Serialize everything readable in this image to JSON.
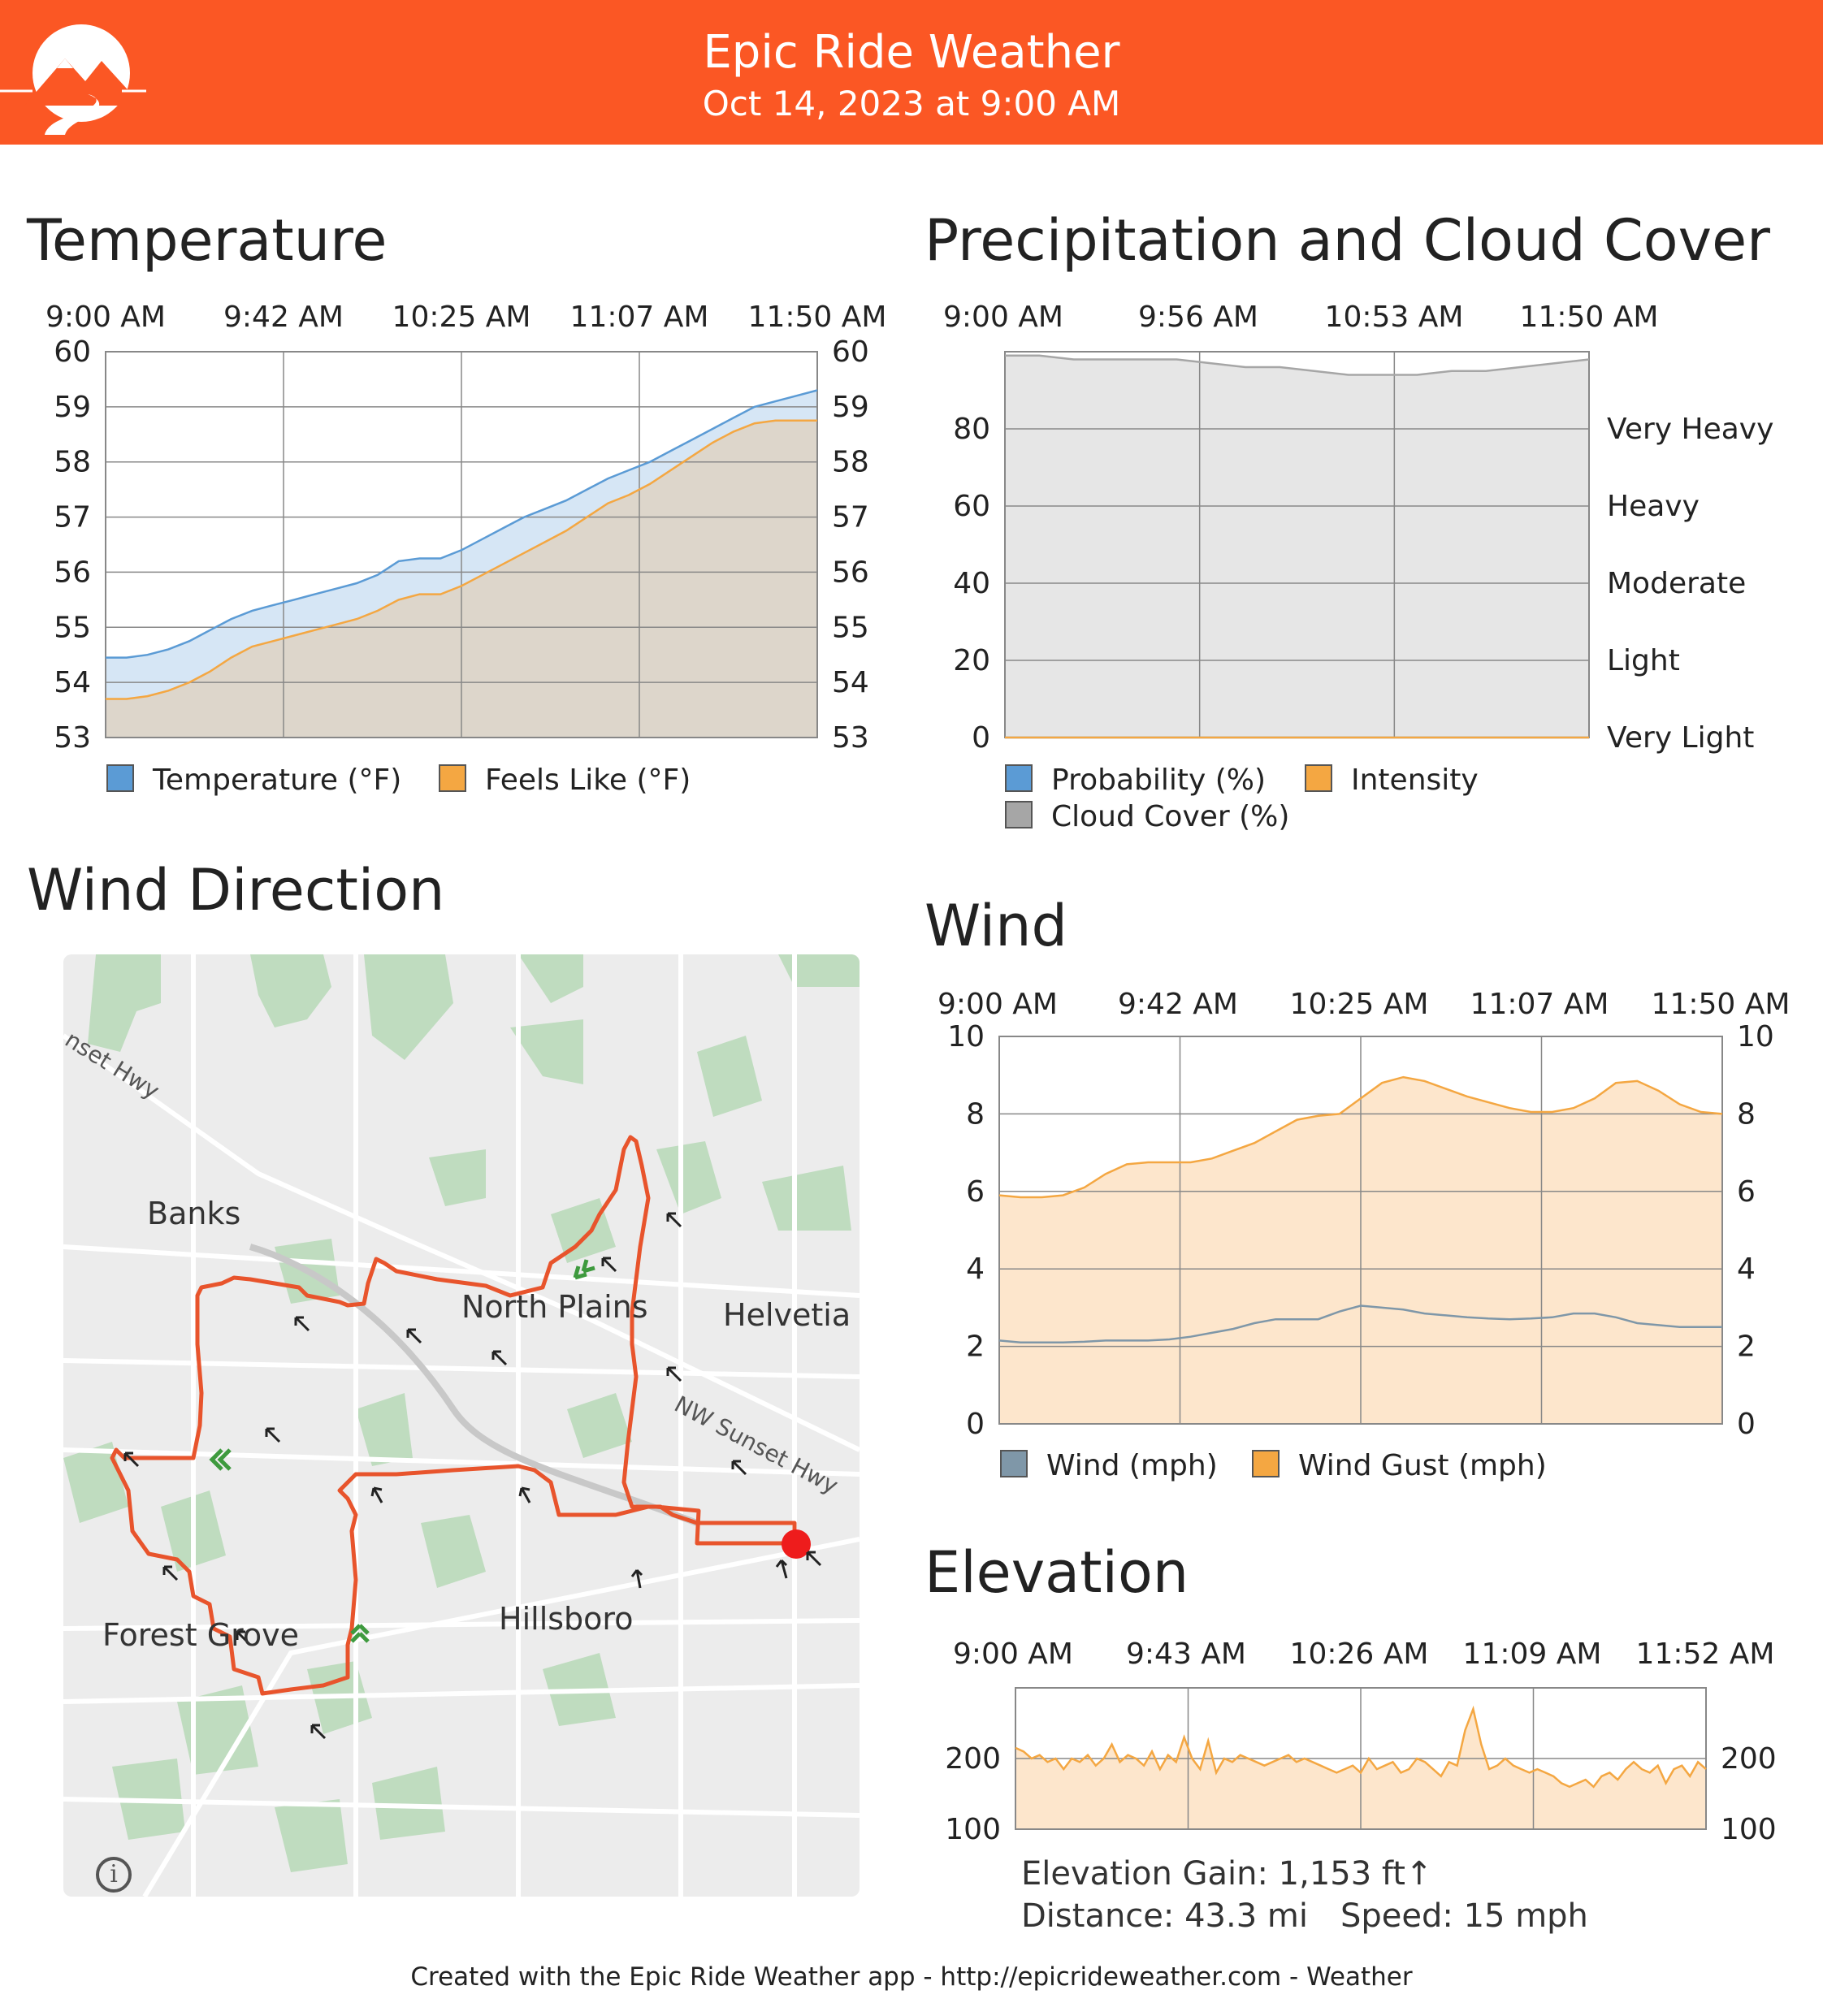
{
  "header": {
    "title": "Epic Ride Weather",
    "subtitle": "Oct 14, 2023 at 9:00 AM",
    "brand_color": "#fb5724"
  },
  "sections": {
    "temperature": "Temperature",
    "precipitation": "Precipitation and Cloud Cover",
    "wind_direction": "Wind Direction",
    "wind": "Wind",
    "elevation": "Elevation"
  },
  "chart_data": [
    {
      "id": "temperature",
      "type": "area",
      "title": "Temperature",
      "categories": [
        "9:00 AM",
        "9:42 AM",
        "10:25 AM",
        "11:07 AM",
        "11:50 AM"
      ],
      "x": [
        0,
        5,
        10,
        15,
        20,
        25,
        30,
        35,
        40,
        45,
        50,
        55,
        60,
        65,
        70,
        75,
        80,
        85,
        90,
        95,
        100,
        105,
        110,
        115,
        120,
        125,
        130,
        135,
        140,
        145,
        150,
        155,
        160,
        165,
        170
      ],
      "series": [
        {
          "name": "Temperature (°F)",
          "color": "#5b9bd5",
          "fill": "#d6e6f5",
          "values": [
            54.45,
            54.45,
            54.5,
            54.6,
            54.75,
            54.95,
            55.15,
            55.3,
            55.4,
            55.5,
            55.6,
            55.7,
            55.8,
            55.95,
            56.2,
            56.25,
            56.25,
            56.4,
            56.6,
            56.8,
            57.0,
            57.15,
            57.3,
            57.5,
            57.7,
            57.85,
            58.0,
            58.2,
            58.4,
            58.6,
            58.8,
            59.0,
            59.1,
            59.2,
            59.3
          ]
        },
        {
          "name": "Feels Like (°F)",
          "color": "#f4a742",
          "fill": "#ddd6cb",
          "values": [
            53.7,
            53.7,
            53.75,
            53.85,
            54.0,
            54.2,
            54.45,
            54.65,
            54.75,
            54.85,
            54.95,
            55.05,
            55.15,
            55.3,
            55.5,
            55.6,
            55.6,
            55.75,
            55.95,
            56.15,
            56.35,
            56.55,
            56.75,
            57.0,
            57.25,
            57.4,
            57.6,
            57.85,
            58.1,
            58.35,
            58.55,
            58.7,
            58.75,
            58.75,
            58.75
          ]
        }
      ],
      "ylim": [
        53,
        60
      ],
      "yticks": [
        53,
        54,
        55,
        56,
        57,
        58,
        59,
        60
      ],
      "grid": true,
      "legend": "bottom"
    },
    {
      "id": "precipitation",
      "type": "area",
      "title": "Precipitation and Cloud Cover",
      "categories": [
        "9:00 AM",
        "9:56 AM",
        "10:53 AM",
        "11:50 AM"
      ],
      "x": [
        0,
        10,
        20,
        30,
        40,
        50,
        60,
        70,
        80,
        90,
        100,
        110,
        120,
        130,
        140,
        150,
        160,
        170
      ],
      "series": [
        {
          "name": "Probability (%)",
          "color": "#5b9bd5",
          "values": [
            0,
            0,
            0,
            0,
            0,
            0,
            0,
            0,
            0,
            0,
            0,
            0,
            0,
            0,
            0,
            0,
            0,
            0
          ]
        },
        {
          "name": "Intensity",
          "color": "#f4a742",
          "values": [
            0,
            0,
            0,
            0,
            0,
            0,
            0,
            0,
            0,
            0,
            0,
            0,
            0,
            0,
            0,
            0,
            0,
            0
          ]
        },
        {
          "name": "Cloud Cover (%)",
          "color": "#a6a6a6",
          "fill": "#e6e6e6",
          "values": [
            99,
            99,
            98,
            98,
            98,
            98,
            97,
            96,
            96,
            95,
            94,
            94,
            94,
            95,
            95,
            96,
            97,
            98
          ]
        }
      ],
      "ylim": [
        0,
        100
      ],
      "yticks": [
        0,
        20,
        40,
        60,
        80
      ],
      "right_labels": [
        "Very Light",
        "Light",
        "Moderate",
        "Heavy",
        "Very Heavy"
      ],
      "grid": true,
      "legend": "bottom"
    },
    {
      "id": "wind",
      "type": "area",
      "title": "Wind",
      "categories": [
        "9:00 AM",
        "9:42 AM",
        "10:25 AM",
        "11:07 AM",
        "11:50 AM"
      ],
      "x": [
        0,
        5,
        10,
        15,
        20,
        25,
        30,
        35,
        40,
        45,
        50,
        55,
        60,
        65,
        70,
        75,
        80,
        85,
        90,
        95,
        100,
        105,
        110,
        115,
        120,
        125,
        130,
        135,
        140,
        145,
        150,
        155,
        160,
        165,
        170
      ],
      "series": [
        {
          "name": "Wind (mph)",
          "color": "#7f97a8",
          "fill": "#dcd6cc",
          "values": [
            2.15,
            2.1,
            2.1,
            2.1,
            2.12,
            2.15,
            2.15,
            2.15,
            2.18,
            2.25,
            2.35,
            2.45,
            2.6,
            2.7,
            2.7,
            2.7,
            2.9,
            3.05,
            3.0,
            2.95,
            2.85,
            2.8,
            2.75,
            2.72,
            2.7,
            2.72,
            2.75,
            2.85,
            2.85,
            2.75,
            2.6,
            2.55,
            2.5,
            2.5,
            2.5
          ]
        },
        {
          "name": "Wind Gust (mph)",
          "color": "#f4a742",
          "fill": "#fde6cc",
          "values": [
            5.9,
            5.85,
            5.85,
            5.9,
            6.1,
            6.45,
            6.7,
            6.75,
            6.75,
            6.75,
            6.85,
            7.05,
            7.25,
            7.55,
            7.85,
            7.95,
            8.0,
            8.4,
            8.8,
            8.95,
            8.85,
            8.65,
            8.45,
            8.3,
            8.15,
            8.05,
            8.05,
            8.15,
            8.4,
            8.8,
            8.85,
            8.6,
            8.25,
            8.05,
            8.0
          ]
        }
      ],
      "ylim": [
        0,
        10
      ],
      "yticks": [
        0,
        2,
        4,
        6,
        8,
        10
      ],
      "grid": true,
      "legend": "bottom"
    },
    {
      "id": "elevation",
      "type": "area",
      "title": "Elevation",
      "categories": [
        "9:00 AM",
        "9:43 AM",
        "10:26 AM",
        "11:09 AM",
        "11:52 AM"
      ],
      "x": [
        0,
        2,
        4,
        6,
        8,
        10,
        12,
        14,
        16,
        18,
        20,
        22,
        24,
        26,
        28,
        30,
        32,
        34,
        36,
        38,
        40,
        42,
        44,
        46,
        48,
        50,
        52,
        54,
        56,
        58,
        60,
        62,
        64,
        66,
        68,
        70,
        72,
        74,
        76,
        78,
        80,
        82,
        84,
        86,
        88,
        90,
        92,
        94,
        96,
        98,
        100,
        102,
        104,
        106,
        108,
        110,
        112,
        114,
        116,
        118,
        120,
        122,
        124,
        126,
        128,
        130,
        132,
        134,
        136,
        138,
        140,
        142,
        144,
        146,
        148,
        150,
        152,
        154,
        156,
        158,
        160,
        162,
        164,
        166,
        168,
        170,
        172
      ],
      "series": [
        {
          "name": "Elevation",
          "color": "#f4a742",
          "fill": "#fde6cc",
          "values": [
            215,
            210,
            200,
            205,
            195,
            200,
            185,
            200,
            195,
            205,
            190,
            200,
            220,
            195,
            205,
            200,
            190,
            210,
            185,
            205,
            195,
            230,
            200,
            185,
            225,
            180,
            200,
            195,
            205,
            200,
            195,
            190,
            195,
            200,
            205,
            195,
            200,
            195,
            190,
            185,
            180,
            185,
            190,
            180,
            200,
            185,
            190,
            195,
            180,
            185,
            200,
            195,
            185,
            175,
            195,
            190,
            240,
            270,
            220,
            185,
            190,
            200,
            190,
            185,
            180,
            185,
            180,
            175,
            165,
            160,
            165,
            170,
            160,
            175,
            180,
            170,
            185,
            195,
            185,
            180,
            190,
            165,
            185,
            190,
            175,
            195,
            185
          ]
        }
      ],
      "ylim": [
        100,
        300
      ],
      "yticks": [
        100,
        200
      ],
      "grid": true,
      "legend": "none"
    }
  ],
  "map": {
    "place_labels": [
      "Banks",
      "North Plains",
      "Helvetia",
      "Forest Grove",
      "Hillsboro"
    ],
    "road_labels": [
      "NW Sunset Hwy",
      "nset Hwy"
    ],
    "route_color": "#e8542c",
    "start_marker_color": "#ee1c1c",
    "wind_arrow_color": "#222222",
    "direction_chevron_color": "#3e9a3e",
    "info_icon": "info-icon"
  },
  "stats": {
    "elevation_gain": "Elevation Gain: 1,153 ft↑",
    "distance": "Distance: 43.3 mi",
    "speed": "Speed: 15 mph"
  },
  "footer": {
    "text": "Created with the Epic Ride Weather app - http://epicrideweather.com - ",
    "apple_glyph": "",
    "weather": " Weather"
  }
}
